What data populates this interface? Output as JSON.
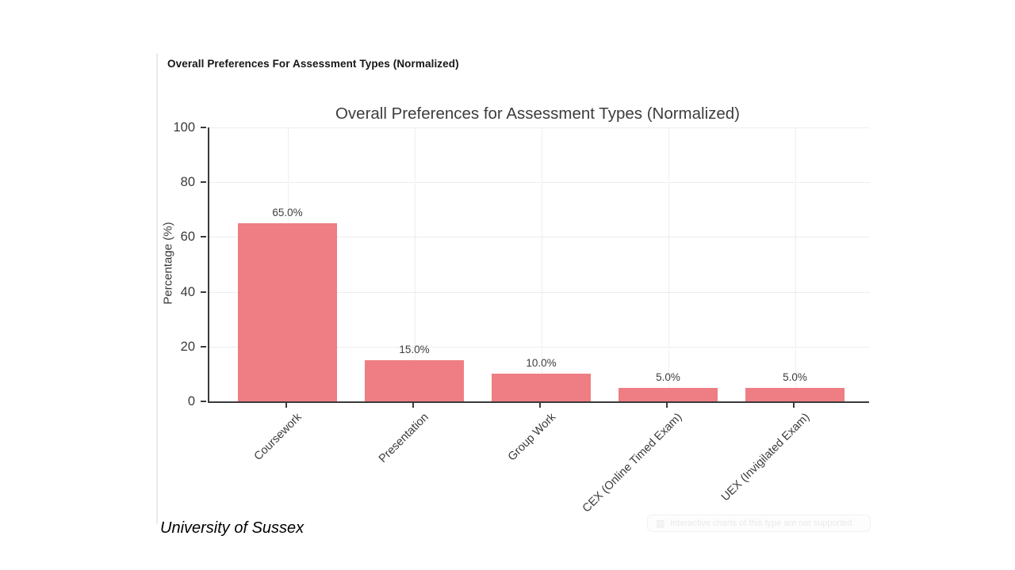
{
  "page": {
    "header_title": "Overall Preferences For Assessment Types (Normalized)",
    "footer_caption": "University of Sussex",
    "watermark_text": "Interactive charts of this type are not supported"
  },
  "chart_data": {
    "type": "bar",
    "title": "Overall Preferences for Assessment Types (Normalized)",
    "categories": [
      "Coursework",
      "Presentation",
      "Group Work",
      "CEX (Online Timed Exam)",
      "UEX (Invigilated Exam)"
    ],
    "values": [
      65.0,
      15.0,
      10.0,
      5.0,
      5.0
    ],
    "value_labels": [
      "65.0%",
      "15.0%",
      "10.0%",
      "5.0%",
      "5.0%"
    ],
    "xlabel": "",
    "ylabel": "Percentage (%)",
    "ylim": [
      0,
      100
    ],
    "yticks": [
      0,
      20,
      40,
      60,
      80,
      100
    ],
    "grid": "dotted, horizontal at yticks and vertical at category centers",
    "legend": "none",
    "bar_color": "#ee7e83",
    "axis_color": "#3a3a3a",
    "grid_color": "#dcdcdc"
  }
}
